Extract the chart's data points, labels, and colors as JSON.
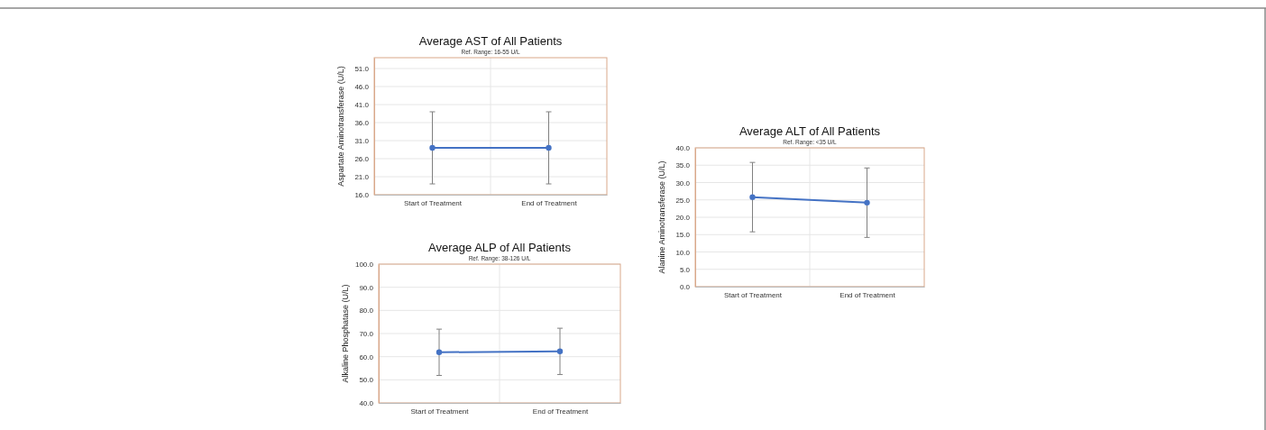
{
  "chart_data": [
    {
      "type": "line",
      "title": "Average AST of All Patients",
      "subtitle": "Ref. Range: 16-55 U/L",
      "ylabel": "Aspartate Aminotransferase (U/L)",
      "categories": [
        "Start of Treatment",
        "End of Treatment"
      ],
      "series": [
        {
          "color": "#4472c4",
          "values": [
            29.0,
            29.0
          ],
          "errors": [
            10,
            10
          ]
        }
      ],
      "ylim": [
        16,
        54
      ],
      "yticks": [
        {
          "value": 16,
          "label": "16.0"
        },
        {
          "value": 21,
          "label": "21.0"
        },
        {
          "value": 26,
          "label": "26.0"
        },
        {
          "value": 31,
          "label": "31.0"
        },
        {
          "value": 36,
          "label": "36.0"
        },
        {
          "value": 41,
          "label": "41.0"
        },
        {
          "value": 46,
          "label": "46.0"
        },
        {
          "value": 51,
          "label": "51.0"
        }
      ],
      "grid": true,
      "marker": "circle"
    },
    {
      "type": "line",
      "title": "Average ALT of All Patients",
      "subtitle": "Ref. Range: <35 U/L",
      "ylabel": "Alanine Aminotransferase (U/L)",
      "categories": [
        "Start of Treatment",
        "End of Treatment"
      ],
      "series": [
        {
          "color": "#4472c4",
          "values": [
            25.8,
            24.2
          ],
          "errors": [
            10,
            10
          ]
        }
      ],
      "ylim": [
        0,
        40
      ],
      "yticks": [
        {
          "value": 0,
          "label": "0.0"
        },
        {
          "value": 5,
          "label": "5.0"
        },
        {
          "value": 10,
          "label": "10.0"
        },
        {
          "value": 15,
          "label": "15.0"
        },
        {
          "value": 20,
          "label": "20.0"
        },
        {
          "value": 25,
          "label": "25.0"
        },
        {
          "value": 30,
          "label": "30.0"
        },
        {
          "value": 35,
          "label": "35.0"
        },
        {
          "value": 40,
          "label": "40.0"
        }
      ],
      "grid": true,
      "marker": "circle"
    },
    {
      "type": "line",
      "title": "Average ALP of All Patients",
      "subtitle": "Ref. Range: 38-126 U/L",
      "ylabel": "Alkaline Phosphatase (U/L)",
      "categories": [
        "Start of Treatment",
        "End of Treatment"
      ],
      "series": [
        {
          "color": "#4472c4",
          "values": [
            61.9,
            62.3
          ],
          "errors": [
            10,
            10
          ]
        }
      ],
      "ylim": [
        40,
        100
      ],
      "yticks": [
        {
          "value": 40,
          "label": "40.0"
        },
        {
          "value": 50,
          "label": "50.0"
        },
        {
          "value": 60,
          "label": "60.0"
        },
        {
          "value": 70,
          "label": "70.0"
        },
        {
          "value": 80,
          "label": "80.0"
        },
        {
          "value": 90,
          "label": "90.0"
        },
        {
          "value": 100,
          "label": "100.0"
        }
      ],
      "grid": true,
      "marker": "circle"
    }
  ]
}
